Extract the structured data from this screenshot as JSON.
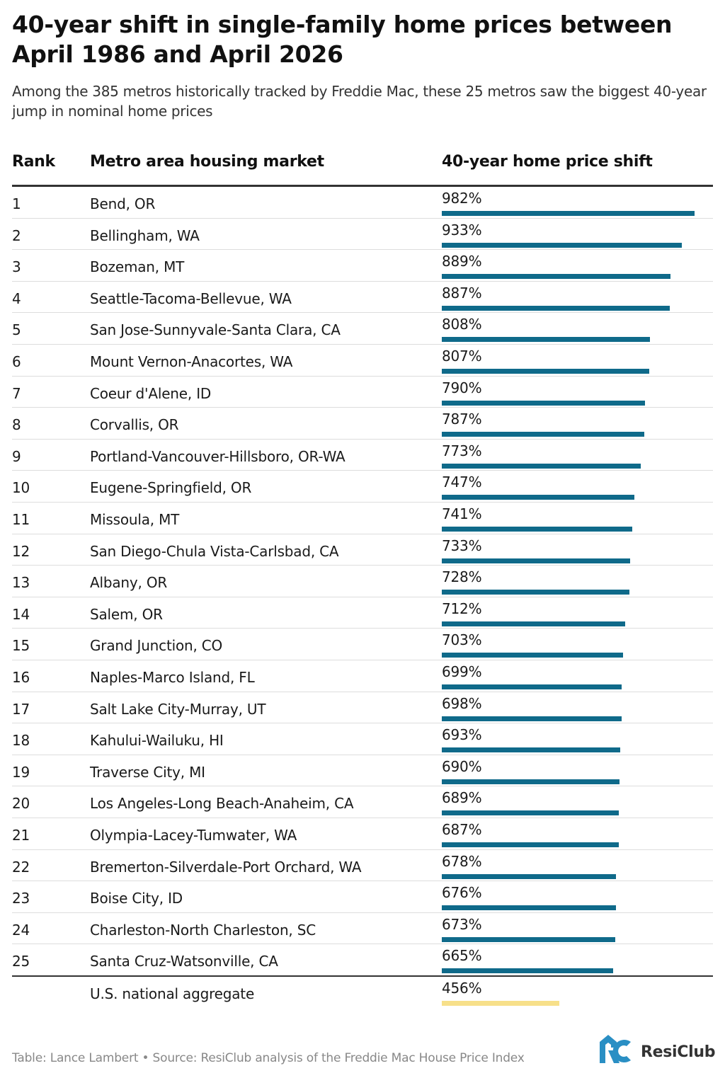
{
  "header": {
    "title": "40-year shift in single-family home prices between April 1986 and April 2026",
    "subtitle": "Among the 385 metros historically tracked by Freddie Mac, these 25 metros saw the biggest 40-year jump in nominal home prices"
  },
  "table": {
    "columns": [
      "Rank",
      "Metro area housing market",
      "40-year home price shift"
    ]
  },
  "chart_data": {
    "type": "bar",
    "title": "40-year shift in single-family home prices between April 1986 and April 2026",
    "xlabel": "",
    "ylabel": "40-year home price shift",
    "unit": "%",
    "xlim": [
      0,
      982
    ],
    "rows": [
      {
        "rank": "1",
        "metro": "Bend, OR",
        "value": 982,
        "label": "982%"
      },
      {
        "rank": "2",
        "metro": "Bellingham, WA",
        "value": 933,
        "label": "933%"
      },
      {
        "rank": "3",
        "metro": "Bozeman, MT",
        "value": 889,
        "label": "889%"
      },
      {
        "rank": "4",
        "metro": "Seattle-Tacoma-Bellevue, WA",
        "value": 887,
        "label": "887%"
      },
      {
        "rank": "5",
        "metro": "San Jose-Sunnyvale-Santa Clara, CA",
        "value": 808,
        "label": "808%"
      },
      {
        "rank": "6",
        "metro": "Mount Vernon-Anacortes, WA",
        "value": 807,
        "label": "807%"
      },
      {
        "rank": "7",
        "metro": "Coeur d'Alene, ID",
        "value": 790,
        "label": "790%"
      },
      {
        "rank": "8",
        "metro": "Corvallis, OR",
        "value": 787,
        "label": "787%"
      },
      {
        "rank": "9",
        "metro": "Portland-Vancouver-Hillsboro, OR-WA",
        "value": 773,
        "label": "773%"
      },
      {
        "rank": "10",
        "metro": "Eugene-Springfield, OR",
        "value": 747,
        "label": "747%"
      },
      {
        "rank": "11",
        "metro": "Missoula, MT",
        "value": 741,
        "label": "741%"
      },
      {
        "rank": "12",
        "metro": "San Diego-Chula Vista-Carlsbad, CA",
        "value": 733,
        "label": "733%"
      },
      {
        "rank": "13",
        "metro": "Albany, OR",
        "value": 728,
        "label": "728%"
      },
      {
        "rank": "14",
        "metro": "Salem, OR",
        "value": 712,
        "label": "712%"
      },
      {
        "rank": "15",
        "metro": "Grand Junction, CO",
        "value": 703,
        "label": "703%"
      },
      {
        "rank": "16",
        "metro": "Naples-Marco Island, FL",
        "value": 699,
        "label": "699%"
      },
      {
        "rank": "17",
        "metro": "Salt Lake City-Murray, UT",
        "value": 698,
        "label": "698%"
      },
      {
        "rank": "18",
        "metro": "Kahului-Wailuku, HI",
        "value": 693,
        "label": "693%"
      },
      {
        "rank": "19",
        "metro": "Traverse City, MI",
        "value": 690,
        "label": "690%"
      },
      {
        "rank": "20",
        "metro": "Los Angeles-Long Beach-Anaheim, CA",
        "value": 689,
        "label": "689%"
      },
      {
        "rank": "21",
        "metro": "Olympia-Lacey-Tumwater, WA",
        "value": 687,
        "label": "687%"
      },
      {
        "rank": "22",
        "metro": "Bremerton-Silverdale-Port Orchard, WA",
        "value": 678,
        "label": "678%"
      },
      {
        "rank": "23",
        "metro": "Boise City, ID",
        "value": 676,
        "label": "676%"
      },
      {
        "rank": "24",
        "metro": "Charleston-North Charleston, SC",
        "value": 673,
        "label": "673%"
      },
      {
        "rank": "25",
        "metro": "Santa Cruz-Watsonville, CA",
        "value": 665,
        "label": "665%"
      }
    ],
    "national": {
      "metro": "U.S. national aggregate",
      "value": 456,
      "label": "456%"
    },
    "colors": {
      "bar": "#0f6a8a",
      "national_bar": "#f7e08a"
    },
    "grid": false,
    "legend": "none"
  },
  "footer": {
    "credit": "Table: Lance Lambert • Source: ResiClub analysis of the Freddie Mac House Price Index",
    "logo_text": "ResiClub",
    "logo_icon": "resiclub-logo-icon"
  }
}
